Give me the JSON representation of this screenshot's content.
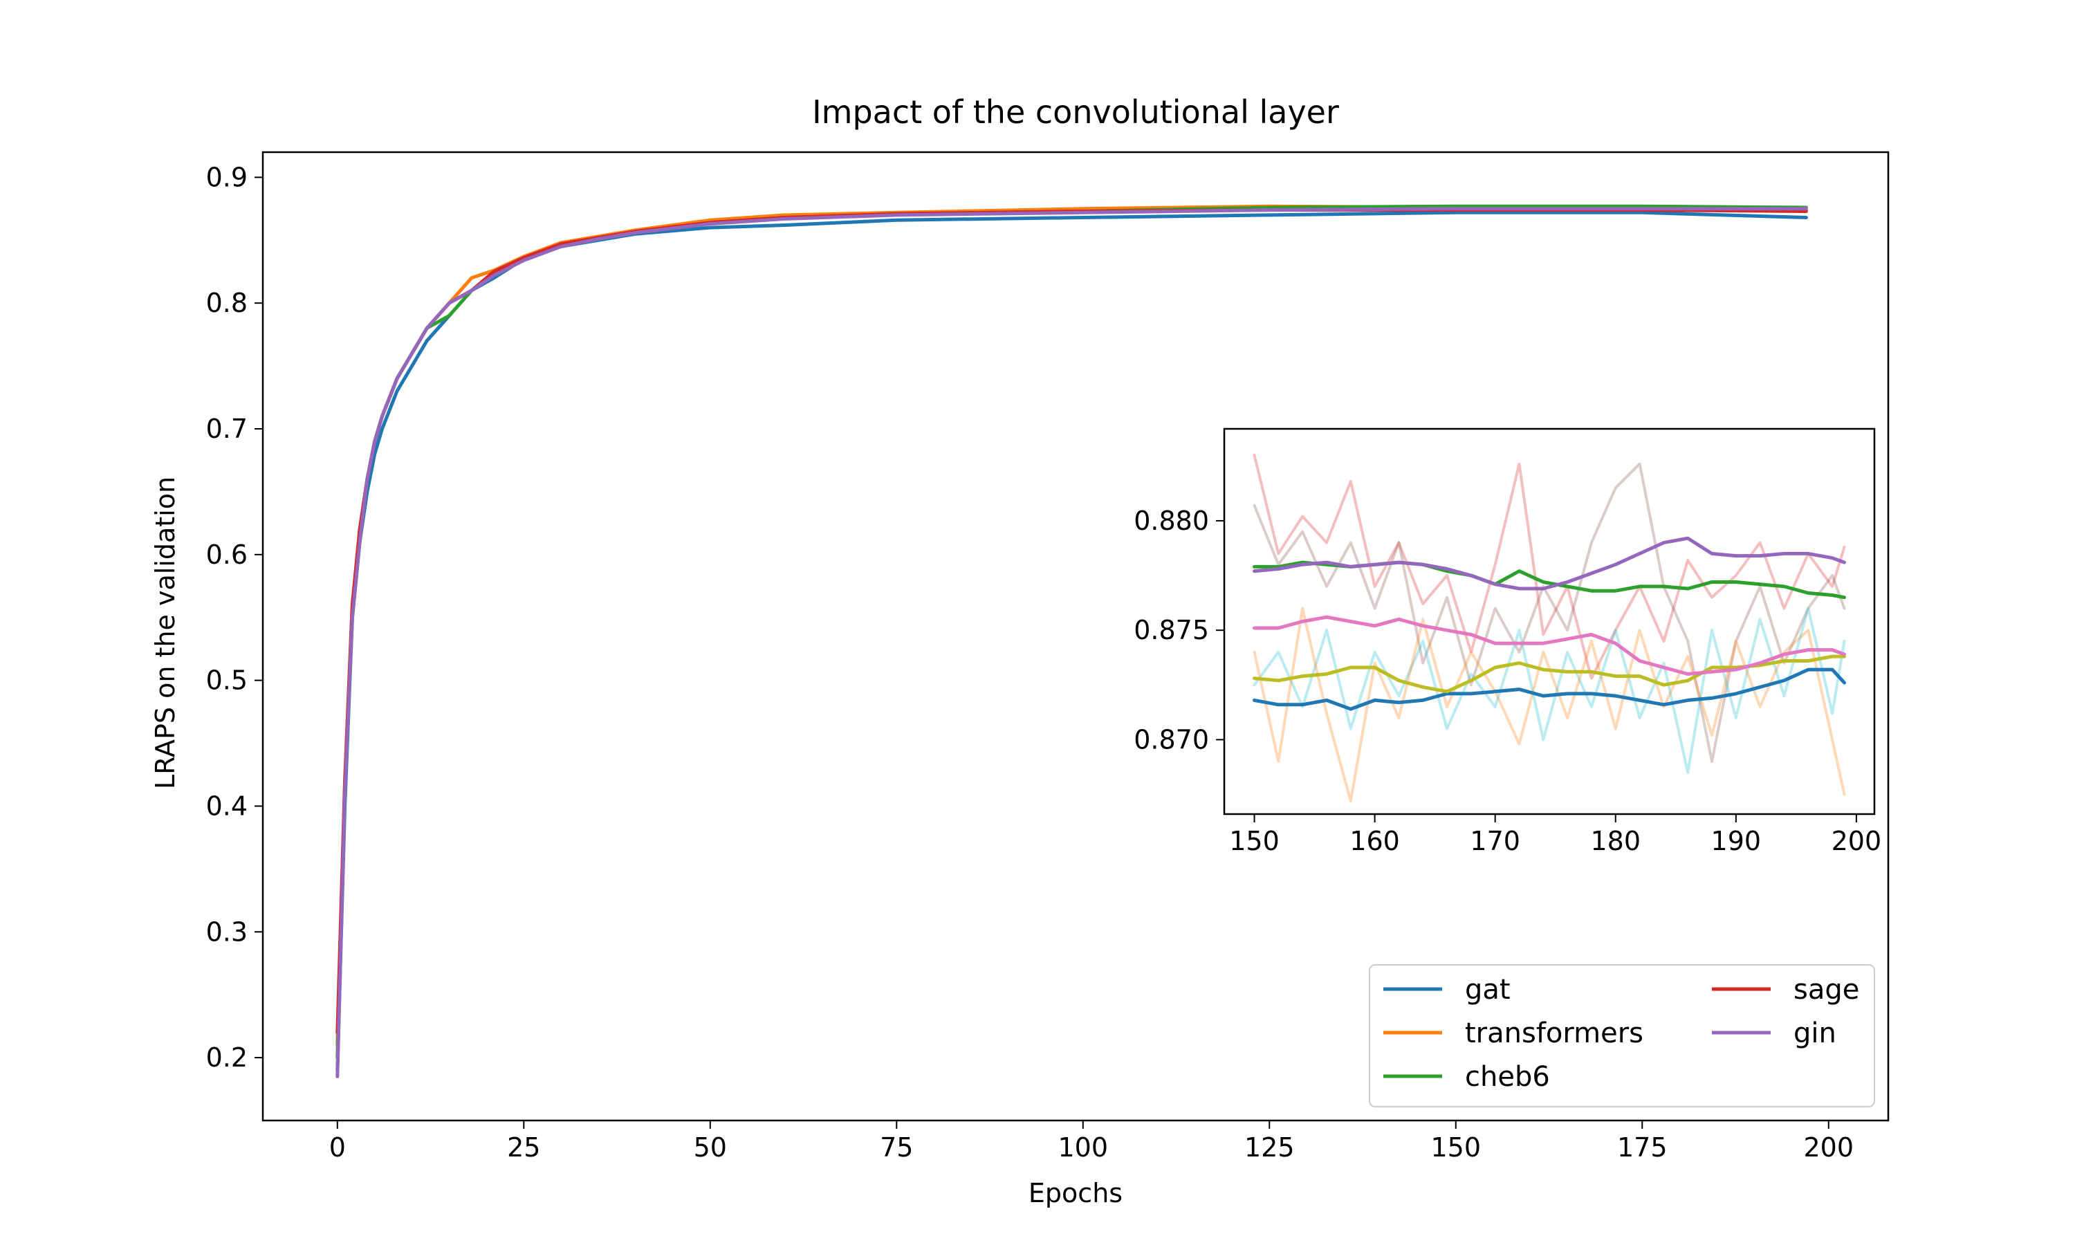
{
  "chart_data": [
    {
      "type": "line",
      "title": "Impact of the convolutional layer",
      "xlabel": "Epochs",
      "ylabel": "LRAPS on the validation",
      "xlim": [
        -10,
        208
      ],
      "ylim": [
        0.15,
        0.92
      ],
      "xticks": [
        "0",
        "25",
        "50",
        "75",
        "100",
        "125",
        "150",
        "175",
        "200"
      ],
      "yticks": [
        "0.2",
        "0.3",
        "0.4",
        "0.5",
        "0.6",
        "0.7",
        "0.8",
        "0.9"
      ],
      "grid": false,
      "legend": {
        "placement": "lower-right",
        "columns": 2
      },
      "x": [
        0,
        1,
        2,
        3,
        4,
        5,
        6,
        8,
        10,
        12,
        15,
        18,
        21,
        25,
        30,
        35,
        40,
        50,
        60,
        75,
        100,
        125,
        150,
        175,
        197
      ],
      "series": [
        {
          "name": "gat",
          "color": "#1f77b4",
          "values": [
            0.19,
            0.4,
            0.55,
            0.61,
            0.65,
            0.68,
            0.7,
            0.73,
            0.75,
            0.77,
            0.79,
            0.81,
            0.82,
            0.835,
            0.845,
            0.85,
            0.855,
            0.86,
            0.862,
            0.866,
            0.868,
            0.87,
            0.872,
            0.872,
            0.868
          ]
        },
        {
          "name": "transformers",
          "color": "#ff7f0e",
          "values": [
            0.21,
            0.42,
            0.56,
            0.62,
            0.66,
            0.69,
            0.71,
            0.74,
            0.76,
            0.78,
            0.8,
            0.82,
            0.826,
            0.837,
            0.848,
            0.853,
            0.858,
            0.866,
            0.87,
            0.872,
            0.875,
            0.877,
            0.876,
            0.875,
            0.874
          ]
        },
        {
          "name": "cheb6",
          "color": "#2ca02c",
          "values": [
            0.2,
            0.41,
            0.55,
            0.61,
            0.66,
            0.69,
            0.71,
            0.74,
            0.76,
            0.78,
            0.79,
            0.81,
            0.824,
            0.835,
            0.846,
            0.851,
            0.856,
            0.864,
            0.868,
            0.871,
            0.873,
            0.876,
            0.877,
            0.877,
            0.876
          ]
        },
        {
          "name": "sage",
          "color": "#d62728",
          "values": [
            0.22,
            0.42,
            0.56,
            0.62,
            0.66,
            0.69,
            0.71,
            0.74,
            0.76,
            0.78,
            0.8,
            0.81,
            0.825,
            0.836,
            0.847,
            0.852,
            0.857,
            0.864,
            0.868,
            0.871,
            0.873,
            0.874,
            0.874,
            0.874,
            0.873
          ]
        },
        {
          "name": "gin",
          "color": "#9467bd",
          "values": [
            0.185,
            0.41,
            0.55,
            0.61,
            0.66,
            0.69,
            0.71,
            0.74,
            0.76,
            0.78,
            0.8,
            0.81,
            0.822,
            0.834,
            0.845,
            0.851,
            0.856,
            0.863,
            0.867,
            0.87,
            0.872,
            0.874,
            0.875,
            0.875,
            0.875
          ]
        }
      ]
    },
    {
      "type": "line",
      "title": "",
      "xlabel": "",
      "ylabel": "",
      "xlim": [
        147.5,
        201.5
      ],
      "ylim": [
        0.8666,
        0.8842
      ],
      "xticks": [
        "150",
        "160",
        "170",
        "180",
        "190",
        "200"
      ],
      "yticks": [
        "0.870",
        "0.875",
        "0.880"
      ],
      "grid": false,
      "x": [
        150,
        152,
        154,
        156,
        158,
        160,
        162,
        164,
        166,
        168,
        170,
        172,
        174,
        176,
        178,
        180,
        182,
        184,
        186,
        188,
        190,
        192,
        194,
        196,
        198,
        199
      ],
      "series": [
        {
          "color": "#1f77b4",
          "values": [
            0.8718,
            0.8716,
            0.8716,
            0.8718,
            0.8714,
            0.8718,
            0.8717,
            0.8718,
            0.8721,
            0.8721,
            0.8722,
            0.8723,
            0.872,
            0.8721,
            0.8721,
            0.872,
            0.8718,
            0.8716,
            0.8718,
            0.8719,
            0.8721,
            0.8724,
            0.8727,
            0.8732,
            0.8732,
            0.8726
          ]
        },
        {
          "color": "#bcbd22",
          "values": [
            0.8728,
            0.8727,
            0.8729,
            0.873,
            0.8733,
            0.8733,
            0.8727,
            0.8724,
            0.8722,
            0.8727,
            0.8733,
            0.8735,
            0.8732,
            0.8731,
            0.8731,
            0.8729,
            0.8729,
            0.8725,
            0.8727,
            0.8733,
            0.8733,
            0.8734,
            0.8736,
            0.8736,
            0.8738,
            0.8738
          ]
        },
        {
          "color": "#e377c2",
          "values": [
            0.8751,
            0.8751,
            0.8754,
            0.8756,
            0.8754,
            0.8752,
            0.8755,
            0.8752,
            0.875,
            0.8748,
            0.8744,
            0.8744,
            0.8744,
            0.8746,
            0.8748,
            0.8744,
            0.8736,
            0.8733,
            0.873,
            0.8731,
            0.8732,
            0.8735,
            0.8739,
            0.8741,
            0.8741,
            0.8739
          ]
        },
        {
          "color": "#2ca02c",
          "values": [
            0.8779,
            0.8779,
            0.8781,
            0.878,
            0.8779,
            0.878,
            0.8781,
            0.878,
            0.8777,
            0.8775,
            0.8771,
            0.8777,
            0.8772,
            0.877,
            0.8768,
            0.8768,
            0.877,
            0.877,
            0.8769,
            0.8772,
            0.8772,
            0.8771,
            0.877,
            0.8767,
            0.8766,
            0.8765
          ]
        },
        {
          "color": "#9467bd",
          "values": [
            0.8777,
            0.8778,
            0.878,
            0.8781,
            0.8779,
            0.878,
            0.8781,
            0.878,
            0.8778,
            0.8775,
            0.8771,
            0.8769,
            0.8769,
            0.8772,
            0.8776,
            0.878,
            0.8785,
            0.879,
            0.8792,
            0.8785,
            0.8784,
            0.8784,
            0.8785,
            0.8785,
            0.8783,
            0.8781
          ]
        },
        {
          "color": "#d62728",
          "faded": true,
          "values": [
            0.883,
            0.8785,
            0.8802,
            0.879,
            0.8818,
            0.877,
            0.879,
            0.8762,
            0.8775,
            0.874,
            0.878,
            0.8826,
            0.8748,
            0.877,
            0.8728,
            0.875,
            0.877,
            0.8745,
            0.8782,
            0.8765,
            0.8775,
            0.879,
            0.876,
            0.8785,
            0.877,
            0.8788
          ]
        },
        {
          "color": "#8c564b",
          "faded": true,
          "values": [
            0.8807,
            0.878,
            0.8795,
            0.877,
            0.879,
            0.876,
            0.879,
            0.8735,
            0.8765,
            0.8725,
            0.876,
            0.874,
            0.877,
            0.875,
            0.879,
            0.8815,
            0.8826,
            0.877,
            0.8745,
            0.869,
            0.8745,
            0.877,
            0.8735,
            0.876,
            0.8775,
            0.876
          ]
        },
        {
          "color": "#17becf",
          "faded": true,
          "values": [
            0.8725,
            0.874,
            0.8715,
            0.875,
            0.8705,
            0.874,
            0.872,
            0.8745,
            0.8705,
            0.873,
            0.8715,
            0.875,
            0.87,
            0.874,
            0.8715,
            0.875,
            0.871,
            0.8735,
            0.8685,
            0.875,
            0.871,
            0.8755,
            0.872,
            0.876,
            0.8712,
            0.8745
          ]
        },
        {
          "color": "#ff7f0e",
          "faded": true,
          "values": [
            0.874,
            0.869,
            0.876,
            0.8712,
            0.8672,
            0.8735,
            0.871,
            0.8755,
            0.8715,
            0.874,
            0.8722,
            0.8698,
            0.874,
            0.871,
            0.8745,
            0.8705,
            0.875,
            0.8715,
            0.8738,
            0.8702,
            0.8745,
            0.8715,
            0.874,
            0.875,
            0.87,
            0.8675
          ]
        }
      ]
    }
  ]
}
